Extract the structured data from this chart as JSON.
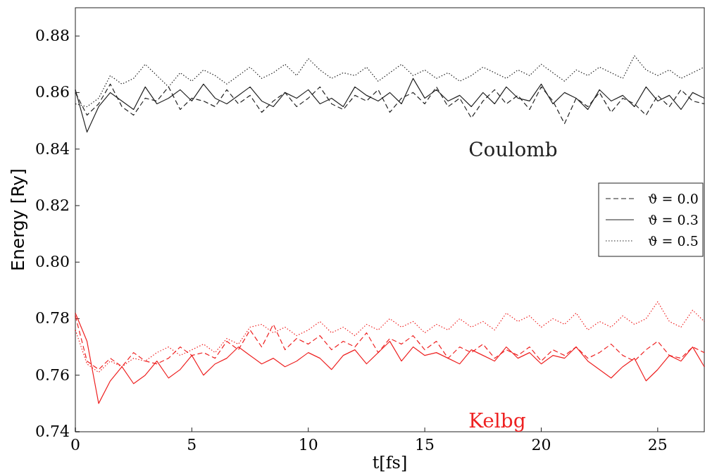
{
  "chart_data": {
    "type": "line",
    "xlabel": "t[fs]",
    "ylabel": "Energy [Ry]",
    "x": [
      0,
      0.5,
      1,
      1.5,
      2,
      2.5,
      3,
      3.5,
      4,
      4.5,
      5,
      5.5,
      6,
      6.5,
      7,
      7.5,
      8,
      8.5,
      9,
      9.5,
      10,
      10.5,
      11,
      11.5,
      12,
      12.5,
      13,
      13.5,
      14,
      14.5,
      15,
      15.5,
      16,
      16.5,
      17,
      17.5,
      18,
      18.5,
      19,
      19.5,
      20,
      20.5,
      21,
      21.5,
      22,
      22.5,
      23,
      23.5,
      24,
      24.5,
      25,
      25.5,
      26,
      26.5,
      27
    ],
    "series": [
      {
        "name": "ϑ = 0.0",
        "color": "#222222",
        "line_style": "dashed",
        "values": [
          0.86,
          0.852,
          0.856,
          0.863,
          0.855,
          0.852,
          0.858,
          0.857,
          0.862,
          0.854,
          0.858,
          0.857,
          0.855,
          0.861,
          0.856,
          0.859,
          0.853,
          0.857,
          0.86,
          0.855,
          0.858,
          0.862,
          0.856,
          0.854,
          0.859,
          0.857,
          0.861,
          0.853,
          0.858,
          0.86,
          0.856,
          0.862,
          0.855,
          0.858,
          0.851,
          0.857,
          0.861,
          0.856,
          0.859,
          0.854,
          0.862,
          0.857,
          0.849,
          0.858,
          0.855,
          0.86,
          0.853,
          0.858,
          0.856,
          0.852,
          0.859,
          0.855,
          0.861,
          0.857,
          0.856
        ]
      },
      {
        "name": "ϑ = 0.3",
        "color": "#222222",
        "line_style": "solid",
        "values": [
          0.861,
          0.846,
          0.855,
          0.86,
          0.857,
          0.854,
          0.862,
          0.856,
          0.858,
          0.861,
          0.857,
          0.863,
          0.858,
          0.856,
          0.859,
          0.862,
          0.857,
          0.855,
          0.86,
          0.858,
          0.861,
          0.856,
          0.858,
          0.855,
          0.862,
          0.859,
          0.857,
          0.86,
          0.856,
          0.865,
          0.858,
          0.861,
          0.857,
          0.859,
          0.855,
          0.86,
          0.856,
          0.862,
          0.858,
          0.857,
          0.863,
          0.856,
          0.86,
          0.858,
          0.854,
          0.861,
          0.857,
          0.859,
          0.855,
          0.862,
          0.857,
          0.859,
          0.854,
          0.86,
          0.858
        ]
      },
      {
        "name": "ϑ = 0.5",
        "color": "#222222",
        "line_style": "dotted",
        "values": [
          0.856,
          0.855,
          0.858,
          0.866,
          0.863,
          0.865,
          0.87,
          0.866,
          0.862,
          0.867,
          0.864,
          0.868,
          0.866,
          0.863,
          0.866,
          0.869,
          0.865,
          0.867,
          0.87,
          0.866,
          0.872,
          0.868,
          0.865,
          0.867,
          0.866,
          0.869,
          0.864,
          0.867,
          0.87,
          0.866,
          0.868,
          0.865,
          0.867,
          0.864,
          0.866,
          0.869,
          0.867,
          0.865,
          0.868,
          0.866,
          0.87,
          0.867,
          0.864,
          0.868,
          0.866,
          0.869,
          0.867,
          0.865,
          0.873,
          0.868,
          0.866,
          0.868,
          0.865,
          0.867,
          0.869
        ]
      },
      {
        "color": "#ee2222",
        "line_style": "dashed",
        "values": [
          0.781,
          0.765,
          0.762,
          0.766,
          0.763,
          0.768,
          0.765,
          0.764,
          0.766,
          0.77,
          0.767,
          0.768,
          0.766,
          0.772,
          0.769,
          0.776,
          0.77,
          0.778,
          0.769,
          0.773,
          0.771,
          0.774,
          0.769,
          0.772,
          0.77,
          0.775,
          0.768,
          0.773,
          0.771,
          0.774,
          0.769,
          0.772,
          0.766,
          0.77,
          0.768,
          0.771,
          0.766,
          0.769,
          0.767,
          0.77,
          0.765,
          0.769,
          0.767,
          0.77,
          0.766,
          0.768,
          0.771,
          0.767,
          0.765,
          0.769,
          0.772,
          0.767,
          0.766,
          0.77,
          0.768
        ]
      },
      {
        "color": "#ee2222",
        "line_style": "solid",
        "values": [
          0.782,
          0.772,
          0.75,
          0.758,
          0.763,
          0.757,
          0.76,
          0.765,
          0.759,
          0.762,
          0.767,
          0.76,
          0.764,
          0.766,
          0.77,
          0.767,
          0.764,
          0.766,
          0.763,
          0.765,
          0.768,
          0.766,
          0.762,
          0.767,
          0.769,
          0.764,
          0.768,
          0.772,
          0.765,
          0.77,
          0.767,
          0.768,
          0.766,
          0.764,
          0.769,
          0.767,
          0.765,
          0.77,
          0.766,
          0.768,
          0.764,
          0.767,
          0.766,
          0.77,
          0.765,
          0.762,
          0.759,
          0.763,
          0.766,
          0.758,
          0.762,
          0.767,
          0.765,
          0.77,
          0.763
        ]
      },
      {
        "color": "#ee2222",
        "line_style": "dotted",
        "values": [
          0.776,
          0.764,
          0.761,
          0.765,
          0.763,
          0.766,
          0.765,
          0.768,
          0.77,
          0.767,
          0.769,
          0.771,
          0.768,
          0.773,
          0.771,
          0.777,
          0.778,
          0.775,
          0.777,
          0.774,
          0.776,
          0.779,
          0.775,
          0.777,
          0.774,
          0.778,
          0.776,
          0.78,
          0.777,
          0.779,
          0.775,
          0.778,
          0.776,
          0.78,
          0.777,
          0.779,
          0.776,
          0.782,
          0.779,
          0.781,
          0.777,
          0.78,
          0.778,
          0.782,
          0.776,
          0.779,
          0.777,
          0.781,
          0.778,
          0.78,
          0.786,
          0.779,
          0.777,
          0.783,
          0.779
        ]
      }
    ],
    "annotations": [
      "Coulomb",
      "Kelbg"
    ],
    "xlim": [
      0,
      27
    ],
    "xticks": [
      0,
      5,
      10,
      15,
      20,
      25
    ],
    "ylim": [
      0.74,
      0.89
    ],
    "yticks": [
      0.74,
      0.76,
      0.78,
      {
        "value": 0.8,
        "label": "0.80"
      },
      0.82,
      0.84,
      0.86,
      0.88
    ],
    "legend": "right"
  }
}
